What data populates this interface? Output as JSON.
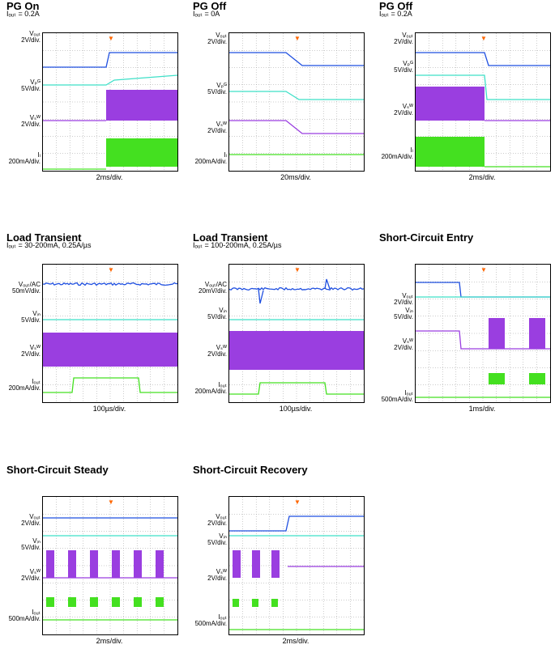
{
  "colors": {
    "vout": "#1f4fe0",
    "vpg": "#3fe0c8",
    "vsw": "#9a3ee0",
    "iout": "#44e020",
    "trig": "#ff6600"
  },
  "panels": [
    {
      "title": "PG On",
      "subtitle": "Iₒᵤₜ = 0.2A",
      "xlabel": "2ms/div.",
      "channels": [
        {
          "label": "Vₒᵤₜ",
          "scale": "2V/div."
        },
        {
          "label": "Vₚᴳ",
          "scale": "5V/div."
        },
        {
          "label": "Vₛᵂ",
          "scale": "2V/div."
        },
        {
          "label": "Iₗ",
          "scale": "200mA/div."
        }
      ]
    },
    {
      "title": "PG Off",
      "subtitle": "Iₒᵤₜ = 0A",
      "xlabel": "20ms/div.",
      "channels": [
        {
          "label": "Vₒᵤₜ",
          "scale": "2V/div."
        },
        {
          "label": "Vₚᴳ",
          "scale": "5V/div."
        },
        {
          "label": "Vₛᵂ",
          "scale": "2V/div."
        },
        {
          "label": "Iₗ",
          "scale": "200mA/div."
        }
      ]
    },
    {
      "title": "PG Off",
      "subtitle": "Iₒᵤₜ = 0.2A",
      "xlabel": "2ms/div.",
      "channels": [
        {
          "label": "Vₒᵤₜ",
          "scale": "2V/div."
        },
        {
          "label": "Vₚᴳ",
          "scale": "5V/div."
        },
        {
          "label": "Vₛᵂ",
          "scale": "2V/div."
        },
        {
          "label": "Iₗ",
          "scale": "200mA/div."
        }
      ]
    },
    {
      "title": "Load Transient",
      "subtitle": "Iₒᵤₜ = 30-200mA, 0.25A/µs",
      "xlabel": "100µs/div.",
      "channels": [
        {
          "label": "Vₒᵤₜ/AC",
          "scale": "50mV/div."
        },
        {
          "label": "Vᵢₙ",
          "scale": "5V/div."
        },
        {
          "label": "Vₛᵂ",
          "scale": "2V/div."
        },
        {
          "label": "Iₒᵤₜ",
          "scale": "200mA/div."
        }
      ]
    },
    {
      "title": "Load Transient",
      "subtitle": "Iₒᵤₜ = 100-200mA, 0.25A/µs",
      "xlabel": "100µs/div.",
      "channels": [
        {
          "label": "Vₒᵤₜ/AC",
          "scale": "20mV/div."
        },
        {
          "label": "Vᵢₙ",
          "scale": "5V/div."
        },
        {
          "label": "Vₛᵂ",
          "scale": "2V/div."
        },
        {
          "label": "Iₒᵤₜ",
          "scale": "200mA/div."
        }
      ]
    },
    {
      "title": "Short-Circuit Entry",
      "subtitle": "",
      "xlabel": "1ms/div.",
      "channels": [
        {
          "label": "Vₒᵤₜ",
          "scale": "2V/div."
        },
        {
          "label": "Vᵢₙ",
          "scale": "5V/div."
        },
        {
          "label": "Vₛᵂ",
          "scale": "2V/div."
        },
        {
          "label": "Iₒᵤₜ",
          "scale": "500mA/div."
        }
      ]
    },
    {
      "title": "Short-Circuit Steady",
      "subtitle": "",
      "xlabel": "2ms/div.",
      "channels": [
        {
          "label": "Vₒᵤₜ",
          "scale": "2V/div."
        },
        {
          "label": "Vᵢₙ",
          "scale": "5V/div."
        },
        {
          "label": "Vₛᵂ",
          "scale": "2V/div."
        },
        {
          "label": "Iₒᵤₜ",
          "scale": "500mA/div."
        }
      ]
    },
    {
      "title": "Short-Circuit Recovery",
      "subtitle": "",
      "xlabel": "2ms/div.",
      "channels": [
        {
          "label": "Vₒᵤₜ",
          "scale": "2V/div."
        },
        {
          "label": "Vᵢₙ",
          "scale": "5V/div."
        },
        {
          "label": "Vₛᵂ",
          "scale": "2V/div."
        },
        {
          "label": "Iₒᵤₜ",
          "scale": "500mA/div."
        }
      ]
    }
  ],
  "chart_data": [
    {
      "type": "line",
      "title": "PG On"
    },
    {
      "type": "line",
      "title": "PG Off"
    },
    {
      "type": "line",
      "title": "PG Off"
    },
    {
      "type": "line",
      "title": "Load Transient"
    },
    {
      "type": "line",
      "title": "Load Transient"
    },
    {
      "type": "line",
      "title": "Short-Circuit Entry"
    },
    {
      "type": "line",
      "title": "Short-Circuit Steady"
    },
    {
      "type": "line",
      "title": "Short-Circuit Recovery"
    }
  ]
}
